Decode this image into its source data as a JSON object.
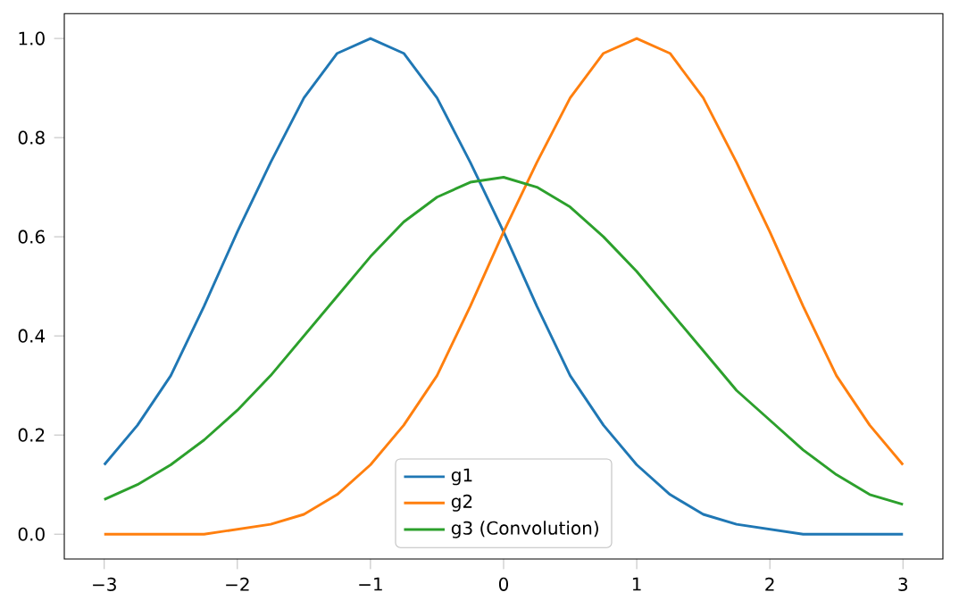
{
  "chart_data": {
    "type": "line",
    "legend": "bottom",
    "marker": "none",
    "line_style": "solid",
    "xlim": [
      -3.3,
      3.3
    ],
    "ylim": [
      -0.05,
      1.05
    ],
    "xticks": [
      {
        "value": -3,
        "label": "−3"
      },
      {
        "value": -2,
        "label": "−2"
      },
      {
        "value": -1,
        "label": "−1"
      },
      0,
      1,
      2,
      3
    ],
    "yticks": [
      {
        "value": 0,
        "label": "0.0"
      },
      {
        "value": 0.2,
        "label": "0.2"
      },
      {
        "value": 0.4,
        "label": "0.4"
      },
      {
        "value": 0.6,
        "label": "0.6"
      },
      {
        "value": 0.8,
        "label": "0.8"
      },
      {
        "value": 1,
        "label": "1.0"
      }
    ],
    "x": [
      -3,
      -2.75,
      -2.5,
      -2.25,
      -2,
      -1.75,
      -1.5,
      -1.25,
      -1,
      -0.75,
      -0.5,
      -0.25,
      0,
      0.25,
      0.5,
      0.75,
      1,
      1.25,
      1.5,
      1.75,
      2,
      2.25,
      2.5,
      2.75,
      3
    ],
    "series": [
      {
        "name": "g1",
        "color": "#1f77b4",
        "values": [
          0.14,
          0.22,
          0.32,
          0.46,
          0.61,
          0.75,
          0.88,
          0.97,
          1.0,
          0.97,
          0.88,
          0.75,
          0.61,
          0.46,
          0.32,
          0.22,
          0.14,
          0.08,
          0.04,
          0.02,
          0.01,
          0.0,
          0.0,
          0.0,
          0.0
        ]
      },
      {
        "name": "g2",
        "color": "#ff7f0e",
        "values": [
          0.0,
          0.0,
          0.0,
          0.0,
          0.01,
          0.02,
          0.04,
          0.08,
          0.14,
          0.22,
          0.32,
          0.46,
          0.61,
          0.75,
          0.88,
          0.97,
          1.0,
          0.97,
          0.88,
          0.75,
          0.61,
          0.46,
          0.32,
          0.22,
          0.14
        ]
      },
      {
        "name": "g3 (Convolution)",
        "color": "#2ca02c",
        "values": [
          0.07,
          0.1,
          0.14,
          0.19,
          0.25,
          0.32,
          0.4,
          0.48,
          0.56,
          0.63,
          0.68,
          0.71,
          0.72,
          0.7,
          0.66,
          0.6,
          0.53,
          0.45,
          0.37,
          0.29,
          0.23,
          0.17,
          0.12,
          0.08,
          0.06
        ]
      }
    ]
  }
}
